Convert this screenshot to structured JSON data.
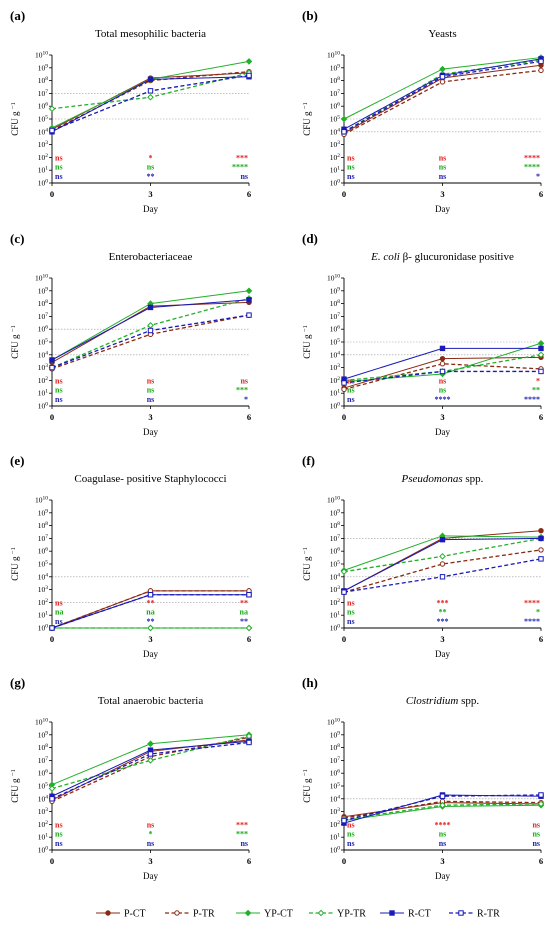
{
  "panels_order": [
    "a",
    "b",
    "c",
    "d",
    "e",
    "f",
    "g",
    "h"
  ],
  "x_axis": {
    "label": "Day",
    "ticks": [
      "0",
      "3",
      "6"
    ]
  },
  "y_axis": {
    "label_main": "CFU g",
    "label_sup": "−1"
  },
  "colors": {
    "P": "#8B2A14",
    "YP": "#22B02A",
    "R": "#1A1AB8",
    "ns_red": "#E0201C",
    "ns_green": "#18A818",
    "ns_blue": "#2020B0",
    "ref": "#9a9a9a"
  },
  "legend": [
    {
      "label": "P-CT",
      "series": "P",
      "dash": false,
      "marker": "circle"
    },
    {
      "label": "P-TR",
      "series": "P",
      "dash": true,
      "marker": "circle"
    },
    {
      "label": "YP-CT",
      "series": "YP",
      "dash": false,
      "marker": "diamond"
    },
    {
      "label": "YP-TR",
      "series": "YP",
      "dash": true,
      "marker": "diamond"
    },
    {
      "label": "R-CT",
      "series": "R",
      "dash": false,
      "marker": "square"
    },
    {
      "label": "R-TR",
      "series": "R",
      "dash": true,
      "marker": "square"
    }
  ],
  "chart_data": [
    {
      "panel": "a",
      "tag": "(a)",
      "title": "Total mesophilic bacteria",
      "title_italic": "",
      "title_rest": "",
      "type": "line",
      "x": [
        0,
        3,
        6
      ],
      "ylim": [
        0,
        10
      ],
      "y_scale": "log10",
      "ref_lines": [
        5,
        7
      ],
      "series": [
        {
          "name": "P-CT",
          "values": [
            4.2,
            8.2,
            8.6
          ]
        },
        {
          "name": "P-TR",
          "values": [
            4.1,
            8.0,
            8.7
          ]
        },
        {
          "name": "YP-CT",
          "values": [
            4.3,
            8.1,
            9.5
          ]
        },
        {
          "name": "YP-TR",
          "values": [
            5.8,
            6.7,
            8.6
          ]
        },
        {
          "name": "R-CT",
          "values": [
            4.0,
            8.1,
            8.3
          ]
        },
        {
          "name": "R-TR",
          "values": [
            4.1,
            7.2,
            8.4
          ]
        }
      ],
      "sig": [
        [
          "ns",
          "*",
          "***"
        ],
        [
          "ns",
          "ns",
          "****"
        ],
        [
          "ns",
          "**",
          "ns"
        ]
      ]
    },
    {
      "panel": "b",
      "tag": "(b)",
      "title": "Yeasts",
      "title_italic": "",
      "title_rest": "",
      "type": "line",
      "x": [
        0,
        3,
        6
      ],
      "ylim": [
        0,
        10
      ],
      "y_scale": "log10",
      "ref_lines": [
        4,
        5
      ],
      "series": [
        {
          "name": "P-CT",
          "values": [
            3.9,
            8.2,
            9.2
          ]
        },
        {
          "name": "P-TR",
          "values": [
            3.8,
            7.9,
            8.8
          ]
        },
        {
          "name": "YP-CT",
          "values": [
            5.0,
            8.9,
            9.8
          ]
        },
        {
          "name": "YP-TR",
          "values": [
            4.0,
            8.5,
            9.6
          ]
        },
        {
          "name": "R-CT",
          "values": [
            4.2,
            8.4,
            9.7
          ]
        },
        {
          "name": "R-TR",
          "values": [
            4.0,
            8.3,
            9.5
          ]
        }
      ],
      "sig": [
        [
          "ns",
          "ns",
          "****"
        ],
        [
          "ns",
          "ns",
          "****"
        ],
        [
          "ns",
          "ns",
          "*"
        ]
      ]
    },
    {
      "panel": "c",
      "tag": "(c)",
      "title": "Enterobacteriaceae",
      "title_italic": "",
      "title_rest": "",
      "type": "line",
      "x": [
        0,
        3,
        6
      ],
      "ylim": [
        0,
        10
      ],
      "y_scale": "log10",
      "ref_lines": [
        4,
        6
      ],
      "series": [
        {
          "name": "P-CT",
          "values": [
            3.4,
            7.8,
            8.1
          ]
        },
        {
          "name": "P-TR",
          "values": [
            2.9,
            5.6,
            7.1
          ]
        },
        {
          "name": "YP-CT",
          "values": [
            3.6,
            8.0,
            9.0
          ]
        },
        {
          "name": "YP-TR",
          "values": [
            3.0,
            6.3,
            8.4
          ]
        },
        {
          "name": "R-CT",
          "values": [
            3.6,
            7.7,
            8.3
          ]
        },
        {
          "name": "R-TR",
          "values": [
            3.0,
            5.9,
            7.1
          ]
        }
      ],
      "sig": [
        [
          "ns",
          "ns",
          "ns"
        ],
        [
          "ns",
          "ns",
          "***"
        ],
        [
          "ns",
          "ns",
          "*"
        ]
      ]
    },
    {
      "panel": "d",
      "tag": "(d)",
      "title": "",
      "title_italic": "E. coli",
      "title_rest": " β- glucuronidase positive",
      "type": "line",
      "x": [
        0,
        3,
        6
      ],
      "ylim": [
        0,
        10
      ],
      "y_scale": "log10",
      "ref_lines": [
        4,
        5
      ],
      "series": [
        {
          "name": "P-CT",
          "values": [
            1.4,
            3.7,
            3.8
          ]
        },
        {
          "name": "P-TR",
          "values": [
            1.3,
            3.3,
            2.9
          ]
        },
        {
          "name": "YP-CT",
          "values": [
            1.9,
            2.5,
            4.9
          ]
        },
        {
          "name": "YP-TR",
          "values": [
            2.0,
            2.7,
            4.0
          ]
        },
        {
          "name": "R-CT",
          "values": [
            2.1,
            4.5,
            4.5
          ]
        },
        {
          "name": "R-TR",
          "values": [
            1.8,
            2.7,
            2.7
          ]
        }
      ],
      "sig": [
        [
          "ns",
          "ns",
          "*"
        ],
        [
          "ns",
          "ns",
          "**"
        ],
        [
          "ns",
          "****",
          "****"
        ]
      ]
    },
    {
      "panel": "e",
      "tag": "(e)",
      "title": "Coagulase- positive Staphylococci",
      "title_italic": "",
      "title_rest": "",
      "type": "line",
      "x": [
        0,
        3,
        6
      ],
      "ylim": [
        0,
        10
      ],
      "y_scale": "log10",
      "ref_lines": [
        2,
        4
      ],
      "series": [
        {
          "name": "P-CT",
          "values": [
            0.0,
            2.9,
            2.9
          ]
        },
        {
          "name": "P-TR",
          "values": [
            0.0,
            2.9,
            2.9
          ]
        },
        {
          "name": "YP-CT",
          "values": [
            0.0,
            0.0,
            0.0
          ]
        },
        {
          "name": "YP-TR",
          "values": [
            0.0,
            0.0,
            0.0
          ]
        },
        {
          "name": "R-CT",
          "values": [
            0.0,
            2.6,
            2.6
          ]
        },
        {
          "name": "R-TR",
          "values": [
            0.0,
            2.6,
            2.6
          ]
        }
      ],
      "sig": [
        [
          "ns",
          "**",
          "**"
        ],
        [
          "na",
          "na",
          "na"
        ],
        [
          "ns",
          "**",
          "**"
        ]
      ]
    },
    {
      "panel": "f",
      "tag": "(f)",
      "title": "",
      "title_italic": "Pseudomonas",
      "title_rest": " spp.",
      "type": "line",
      "x": [
        0,
        3,
        6
      ],
      "ylim": [
        0,
        10
      ],
      "y_scale": "log10",
      "ref_lines": [
        4,
        7
      ],
      "series": [
        {
          "name": "P-CT",
          "values": [
            2.9,
            7.0,
            7.6
          ]
        },
        {
          "name": "P-TR",
          "values": [
            2.8,
            5.0,
            6.1
          ]
        },
        {
          "name": "YP-CT",
          "values": [
            4.5,
            7.2,
            7.1
          ]
        },
        {
          "name": "YP-TR",
          "values": [
            4.4,
            5.6,
            7.0
          ]
        },
        {
          "name": "R-CT",
          "values": [
            2.9,
            6.9,
            7.0
          ]
        },
        {
          "name": "R-TR",
          "values": [
            2.8,
            4.0,
            5.4
          ]
        }
      ],
      "sig": [
        [
          "ns",
          "***",
          "****"
        ],
        [
          "ns",
          "**",
          "*"
        ],
        [
          "ns",
          "***",
          "****"
        ]
      ]
    },
    {
      "panel": "g",
      "tag": "(g)",
      "title": "Total anaerobic bacteria",
      "title_italic": "",
      "title_rest": "",
      "type": "line",
      "x": [
        0,
        3,
        6
      ],
      "ylim": [
        0,
        10
      ],
      "y_scale": "log10",
      "ref_lines": [],
      "series": [
        {
          "name": "P-CT",
          "values": [
            3.9,
            7.7,
            8.6
          ]
        },
        {
          "name": "P-TR",
          "values": [
            3.8,
            7.3,
            8.8
          ]
        },
        {
          "name": "YP-CT",
          "values": [
            5.1,
            8.3,
            9.0
          ]
        },
        {
          "name": "YP-TR",
          "values": [
            4.8,
            7.0,
            8.9
          ]
        },
        {
          "name": "R-CT",
          "values": [
            4.2,
            7.8,
            8.5
          ]
        },
        {
          "name": "R-TR",
          "values": [
            4.0,
            7.5,
            8.4
          ]
        }
      ],
      "sig": [
        [
          "ns",
          "ns",
          "***"
        ],
        [
          "ns",
          "*",
          "***"
        ],
        [
          "ns",
          "ns",
          "ns"
        ]
      ]
    },
    {
      "panel": "h",
      "tag": "(h)",
      "title": "",
      "title_italic": "Clostridium",
      "title_rest": " spp.",
      "type": "line",
      "x": [
        0,
        3,
        6
      ],
      "ylim": [
        0,
        10
      ],
      "y_scale": "log10",
      "ref_lines": [
        4
      ],
      "series": [
        {
          "name": "P-CT",
          "values": [
            2.6,
            3.7,
            3.6
          ]
        },
        {
          "name": "P-TR",
          "values": [
            2.5,
            3.8,
            3.7
          ]
        },
        {
          "name": "YP-CT",
          "values": [
            2.3,
            3.4,
            3.5
          ]
        },
        {
          "name": "YP-TR",
          "values": [
            2.4,
            3.5,
            3.6
          ]
        },
        {
          "name": "R-CT",
          "values": [
            2.1,
            4.3,
            4.2
          ]
        },
        {
          "name": "R-TR",
          "values": [
            2.3,
            4.2,
            4.3
          ]
        }
      ],
      "sig": [
        [
          "ns",
          "****",
          "ns"
        ],
        [
          "ns",
          "ns",
          "ns"
        ],
        [
          "ns",
          "ns",
          "ns"
        ]
      ]
    }
  ]
}
